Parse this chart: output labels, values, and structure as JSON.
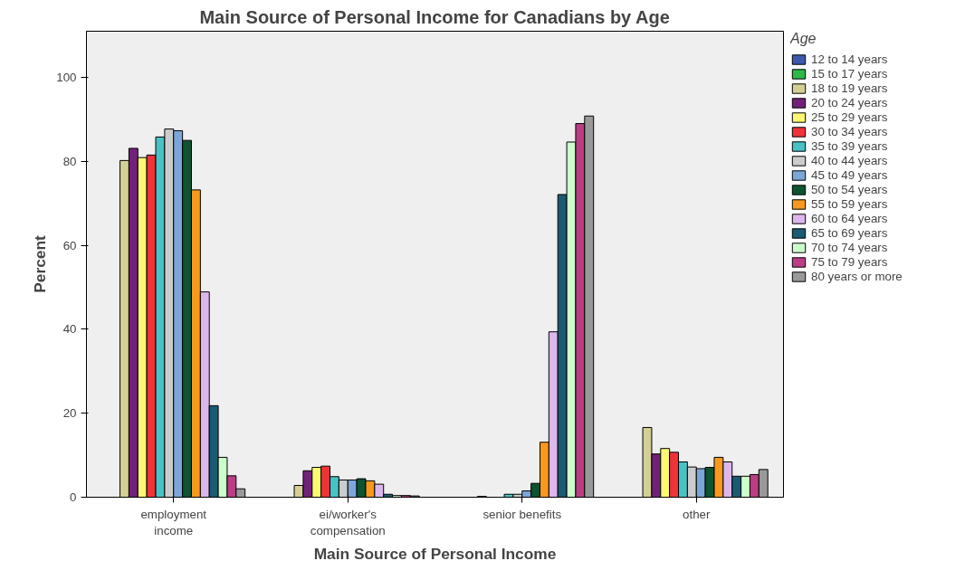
{
  "chart_data": {
    "type": "bar",
    "title": "Main Source of Personal Income for Canadians by Age",
    "xlabel": "Main Source of Personal Income",
    "ylabel": "Percent",
    "legend_title": "Age",
    "categories": [
      "employment income",
      "ei/worker's compensation",
      "senior benefits",
      "other"
    ],
    "ylim": [
      0,
      111
    ],
    "yticks": [
      0,
      20,
      40,
      60,
      80,
      100
    ],
    "grid": false,
    "legend": "right",
    "series": [
      {
        "name": "12 to 14 years",
        "color": "#3e58ac",
        "values": [
          null,
          null,
          null,
          null
        ]
      },
      {
        "name": "15 to 17 years",
        "color": "#2eb848",
        "values": [
          null,
          null,
          null,
          null
        ]
      },
      {
        "name": "18 to 19 years",
        "color": "#d4cf95",
        "values": [
          80.2,
          2.8,
          null,
          16.6
        ]
      },
      {
        "name": "20 to 24 years",
        "color": "#72217a",
        "values": [
          83.1,
          6.3,
          0.2,
          10.3
        ]
      },
      {
        "name": "25 to 29 years",
        "color": "#fbf873",
        "values": [
          80.9,
          7.1,
          null,
          11.6
        ]
      },
      {
        "name": "30 to 34 years",
        "color": "#ef3338",
        "values": [
          81.5,
          7.4,
          null,
          10.7
        ]
      },
      {
        "name": "35 to 39 years",
        "color": "#48c2c5",
        "values": [
          85.8,
          4.9,
          0.7,
          8.4
        ]
      },
      {
        "name": "40 to 44 years",
        "color": "#cccccc",
        "values": [
          87.7,
          4.1,
          0.7,
          7.2
        ]
      },
      {
        "name": "45 to 49 years",
        "color": "#7ba6d8",
        "values": [
          87.3,
          4.1,
          1.5,
          6.8
        ]
      },
      {
        "name": "50 to 54 years",
        "color": "#0e5430",
        "values": [
          85.0,
          4.4,
          3.3,
          7.1
        ]
      },
      {
        "name": "55 to 59 years",
        "color": "#f8981d",
        "values": [
          73.2,
          3.9,
          13.1,
          9.5
        ]
      },
      {
        "name": "60 to 64 years",
        "color": "#dcb7ec",
        "values": [
          48.9,
          3.1,
          39.4,
          8.4
        ]
      },
      {
        "name": "65 to 69 years",
        "color": "#1a5a73",
        "values": [
          21.8,
          0.7,
          72.1,
          5.0
        ]
      },
      {
        "name": "70 to 74 years",
        "color": "#ccfecb",
        "values": [
          9.5,
          0.4,
          84.6,
          5.0
        ]
      },
      {
        "name": "75 to 79 years",
        "color": "#bb3e84",
        "values": [
          5.1,
          0.4,
          89.0,
          5.4
        ]
      },
      {
        "name": "80 years or more",
        "color": "#999999",
        "values": [
          2.0,
          0.3,
          90.8,
          6.6
        ]
      }
    ]
  }
}
